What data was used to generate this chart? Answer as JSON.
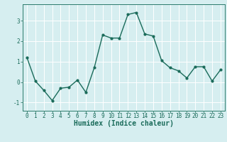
{
  "x": [
    0,
    1,
    2,
    3,
    4,
    5,
    6,
    7,
    8,
    9,
    10,
    11,
    12,
    13,
    14,
    15,
    16,
    17,
    18,
    19,
    20,
    21,
    22,
    23
  ],
  "y": [
    1.2,
    0.05,
    -0.4,
    -0.9,
    -0.3,
    -0.25,
    0.1,
    -0.5,
    0.7,
    2.3,
    2.15,
    2.15,
    3.3,
    3.4,
    2.35,
    2.25,
    1.05,
    0.7,
    0.55,
    0.2,
    0.75,
    0.75,
    0.05,
    0.6
  ],
  "line_color": "#1a6b5a",
  "marker": "o",
  "markersize": 2.0,
  "linewidth": 1.0,
  "xlabel": "Humidex (Indice chaleur)",
  "xlabel_fontsize": 7,
  "xlabel_fontweight": "bold",
  "bg_color": "#d6eef0",
  "grid_color": "#c8dfe2",
  "ylim": [
    -1.4,
    3.8
  ],
  "xlim": [
    -0.5,
    23.5
  ],
  "yticks": [
    -1,
    0,
    1,
    2,
    3
  ],
  "xticks": [
    0,
    1,
    2,
    3,
    4,
    5,
    6,
    7,
    8,
    9,
    10,
    11,
    12,
    13,
    14,
    15,
    16,
    17,
    18,
    19,
    20,
    21,
    22,
    23
  ],
  "tick_fontsize": 5.5
}
